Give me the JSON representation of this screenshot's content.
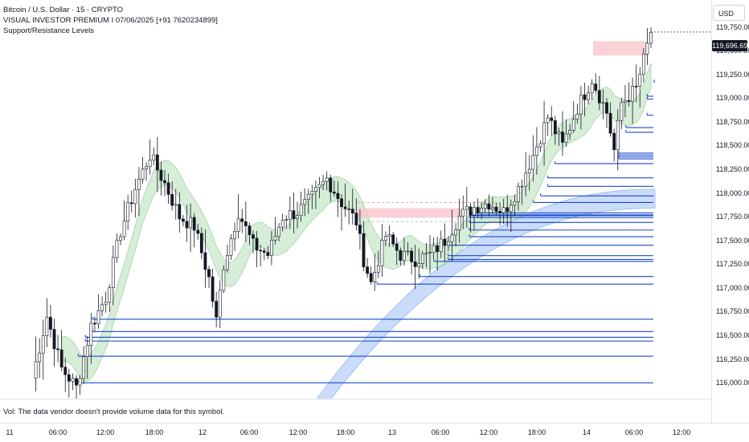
{
  "header": {
    "symbol_title": "Bitcoin / U.S. Dollar · 15 · CRYPTO",
    "subtitle": "VISUAL INVESTOR PREMIUM I 07/06/2025 [+91 7620234899]",
    "indicator": "Support/Resistance Levels"
  },
  "price_scale": {
    "currency": "USD",
    "last_price": "119,696.69",
    "ticks": [
      "119,750.00",
      "119,500.00",
      "119,250.00",
      "119,000.00",
      "118,750.00",
      "118,500.00",
      "118,250.00",
      "118,000.00",
      "117,750.00",
      "117,500.00",
      "117,250.00",
      "117,000.00",
      "116,750.00",
      "116,500.00",
      "116,250.00",
      "116,000.00"
    ]
  },
  "volume": {
    "message": "Vol: The data vendor doesn't provide volume data for this symbol."
  },
  "time_axis": {
    "labels": [
      "11",
      "06:00",
      "12:00",
      "18:00",
      "12",
      "06:00",
      "12:00",
      "18:00",
      "13",
      "06:00",
      "12:00",
      "18:00",
      "14",
      "06:00",
      "12:00"
    ]
  },
  "colors": {
    "up": "#131722",
    "down": "#131722",
    "support_line": "#1848cc",
    "band_green": "#a5d6a7",
    "band_blue": "#9fc0f5",
    "resistance_zone": "#f7c5cc"
  },
  "chart_data": {
    "type": "candlestick",
    "ylim": [
      115900,
      119950
    ],
    "close_path": [
      {
        "t": 0,
        "p": 116050
      },
      {
        "t": 4,
        "p": 116700
      },
      {
        "t": 8,
        "p": 116150
      },
      {
        "t": 12,
        "p": 115950
      },
      {
        "t": 16,
        "p": 116600
      },
      {
        "t": 20,
        "p": 116900
      },
      {
        "t": 24,
        "p": 117600
      },
      {
        "t": 28,
        "p": 118050
      },
      {
        "t": 32,
        "p": 118400
      },
      {
        "t": 36,
        "p": 118100
      },
      {
        "t": 40,
        "p": 117750
      },
      {
        "t": 44,
        "p": 117650
      },
      {
        "t": 48,
        "p": 117100
      },
      {
        "t": 50,
        "p": 116650
      },
      {
        "t": 52,
        "p": 117250
      },
      {
        "t": 56,
        "p": 117800
      },
      {
        "t": 60,
        "p": 117450
      },
      {
        "t": 64,
        "p": 117350
      },
      {
        "t": 68,
        "p": 117750
      },
      {
        "t": 72,
        "p": 117800
      },
      {
        "t": 76,
        "p": 117950
      },
      {
        "t": 80,
        "p": 118150
      },
      {
        "t": 84,
        "p": 117900
      },
      {
        "t": 88,
        "p": 117700
      },
      {
        "t": 90,
        "p": 117300
      },
      {
        "t": 92,
        "p": 117050
      },
      {
        "t": 96,
        "p": 117550
      },
      {
        "t": 100,
        "p": 117350
      },
      {
        "t": 104,
        "p": 117300
      },
      {
        "t": 108,
        "p": 117350
      },
      {
        "t": 112,
        "p": 117500
      },
      {
        "t": 116,
        "p": 117750
      },
      {
        "t": 120,
        "p": 117850
      },
      {
        "t": 124,
        "p": 117900
      },
      {
        "t": 128,
        "p": 117800
      },
      {
        "t": 132,
        "p": 118050
      },
      {
        "t": 136,
        "p": 118400
      },
      {
        "t": 140,
        "p": 118800
      },
      {
        "t": 144,
        "p": 118500
      },
      {
        "t": 148,
        "p": 118900
      },
      {
        "t": 152,
        "p": 119200
      },
      {
        "t": 156,
        "p": 118850
      },
      {
        "t": 158,
        "p": 118450
      },
      {
        "t": 160,
        "p": 118950
      },
      {
        "t": 164,
        "p": 119100
      },
      {
        "t": 168,
        "p": 119700
      }
    ],
    "support_levels": [
      {
        "price": 116000,
        "x_start": 0.11
      },
      {
        "price": 116280,
        "x_start": 0.11
      },
      {
        "price": 116440,
        "x_start": 0.12
      },
      {
        "price": 116480,
        "x_start": 0.12
      },
      {
        "price": 116540,
        "x_start": 0.13
      },
      {
        "price": 116670,
        "x_start": 0.13
      },
      {
        "price": 117040,
        "x_start": 0.53
      },
      {
        "price": 117120,
        "x_start": 0.59
      },
      {
        "price": 117280,
        "x_start": 0.61
      },
      {
        "price": 117300,
        "x_start": 0.63
      },
      {
        "price": 117340,
        "x_start": 0.63
      },
      {
        "price": 117450,
        "x_start": 0.63
      },
      {
        "price": 117540,
        "x_start": 0.66
      },
      {
        "price": 117610,
        "x_start": 0.66
      },
      {
        "price": 117690,
        "x_start": 0.66
      },
      {
        "price": 117740,
        "x_start": 0.66
      },
      {
        "price": 117760,
        "x_start": 0.66
      },
      {
        "price": 117770,
        "x_start": 0.66
      },
      {
        "price": 117790,
        "x_start": 0.66
      },
      {
        "price": 117900,
        "x_start": 0.75
      },
      {
        "price": 117970,
        "x_start": 0.76
      },
      {
        "price": 118070,
        "x_start": 0.77
      },
      {
        "price": 118160,
        "x_start": 0.77
      },
      {
        "price": 118310,
        "x_start": 0.78
      },
      {
        "price": 118360,
        "x_start": 0.87
      },
      {
        "price": 118380,
        "x_start": 0.87
      },
      {
        "price": 118400,
        "x_start": 0.87
      },
      {
        "price": 118420,
        "x_start": 0.87
      },
      {
        "price": 118640,
        "x_start": 0.88
      },
      {
        "price": 118690,
        "x_start": 0.88
      },
      {
        "price": 118820,
        "x_start": 0.91
      },
      {
        "price": 118990,
        "x_start": 0.91
      },
      {
        "price": 119020,
        "x_start": 0.91
      },
      {
        "price": 119170,
        "x_start": 0.92
      }
    ]
  }
}
